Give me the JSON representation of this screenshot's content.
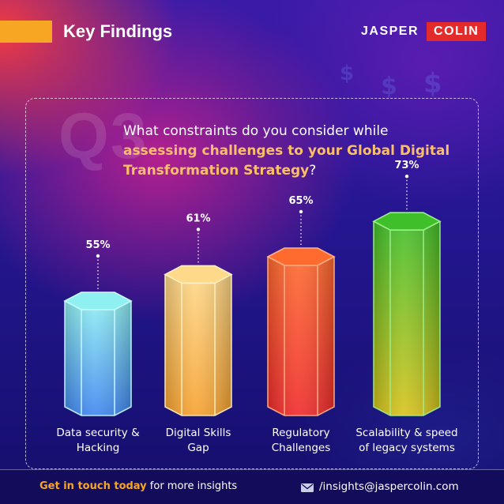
{
  "header": {
    "title": "Key Findings",
    "logo_word_1": "JASPER",
    "logo_word_2": "COLIN"
  },
  "question": {
    "number": "Q3",
    "text_normal": "What constraints do you consider while ",
    "text_highlight": "assessing challenges to your Global Digital Transformation Strategy",
    "text_end": "?"
  },
  "chart_data": {
    "type": "bar",
    "categories": [
      "Data security & Hacking",
      "Digital Skills Gap",
      "Regulatory Challenges",
      "Scalability & speed of legacy systems"
    ],
    "category_lines": [
      [
        "Data security &",
        "Hacking"
      ],
      [
        "Digital Skills",
        "Gap"
      ],
      [
        "Regulatory",
        "Challenges"
      ],
      [
        "Scalability & speed",
        "of legacy systems"
      ]
    ],
    "values": [
      55,
      61,
      65,
      73
    ],
    "value_labels": [
      "55%",
      "61%",
      "65%",
      "73%"
    ],
    "unit": "%",
    "colors": [
      {
        "top": "#8ff0f2",
        "bottom": "#3f86f0",
        "edge": "#c8fbff"
      },
      {
        "top": "#ffd98a",
        "bottom": "#f7a12e",
        "edge": "#fff0c4"
      },
      {
        "top": "#ff6a2e",
        "bottom": "#f02a2a",
        "edge": "#ffb08a"
      },
      {
        "top": "#3fbf2a",
        "bottom": "#d8c21a",
        "edge": "#9ff08a"
      }
    ],
    "grid": false,
    "legend": "none"
  },
  "footer": {
    "cta": "Get in touch today",
    "cta_rest": " for more insights",
    "mail_icon": "envelope-icon",
    "link": "/insights@jaspercolin.com"
  },
  "theme": {
    "accent_orange": "#f6a623",
    "brand_red": "#e42b2b",
    "bg_navy": "#130c5a"
  }
}
